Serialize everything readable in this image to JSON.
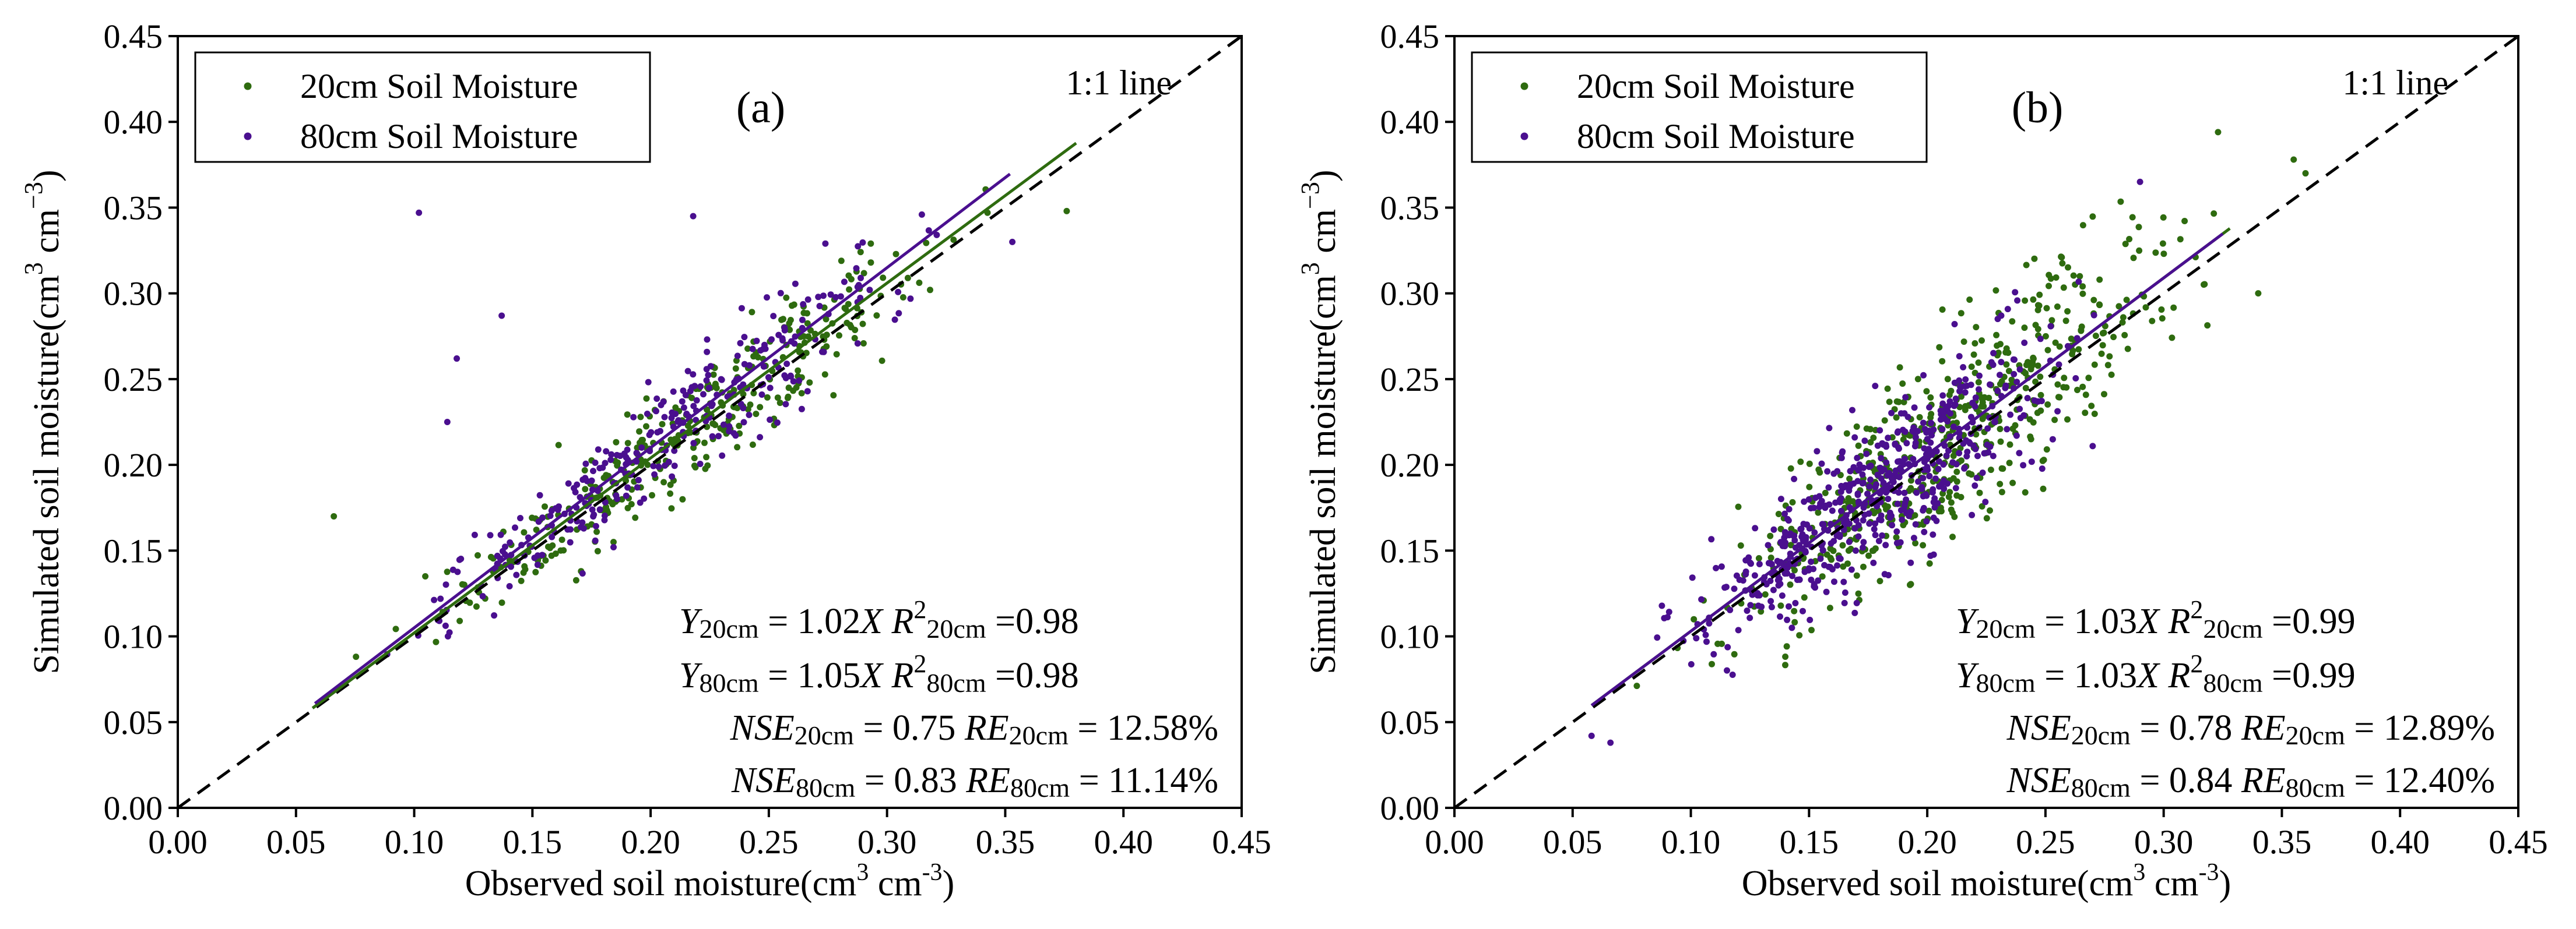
{
  "chart_data": [
    {
      "type": "scatter",
      "panel_label": "(a)",
      "xlabel": "Observed soil moisture(cm3 cm-3)",
      "xlabel_parts": {
        "main": "Observed soil moisture(cm",
        "unit_exp1": "3",
        "mid": " cm",
        "unit_exp2": "-3",
        "end": ")"
      },
      "ylabel": "Simulated soil moisture(cm3 cm-3)",
      "ylabel_parts": {
        "main": "Simulated soil moisture(cm",
        "unit_exp1": "3",
        "mid": " cm",
        "unit_exp2": "−3",
        "end": ")"
      },
      "xlim": [
        0,
        0.45
      ],
      "ylim": [
        0,
        0.45
      ],
      "xticks": [
        "0.00",
        "0.05",
        "0.10",
        "0.15",
        "0.20",
        "0.25",
        "0.30",
        "0.35",
        "0.40",
        "0.45"
      ],
      "yticks": [
        "0.00",
        "0.05",
        "0.10",
        "0.15",
        "0.20",
        "0.25",
        "0.30",
        "0.35",
        "0.40",
        "0.45"
      ],
      "one_to_one_label": "1:1 line",
      "legend": [
        {
          "label": "20cm Soil Moisture",
          "color": "#2e6b0f"
        },
        {
          "label": "80cm Soil Moisture",
          "color": "#4a0f8f"
        }
      ],
      "series": [
        {
          "name": "20cm Soil Moisture",
          "color": "#2e6b0f",
          "n_points": 340,
          "x_range": [
            0.055,
            0.38
          ],
          "slope": 1.02,
          "spread": 0.016,
          "fit_x_range": [
            0.057,
            0.38
          ],
          "seed": 11
        },
        {
          "name": "80cm Soil Moisture",
          "color": "#4a0f8f",
          "n_points": 300,
          "x_range": [
            0.058,
            0.355
          ],
          "slope": 1.05,
          "spread": 0.015,
          "fit_x_range": [
            0.058,
            0.352
          ],
          "seed": 23
        }
      ],
      "outliers": [
        {
          "series": 1,
          "x": 0.102,
          "y": 0.347
        },
        {
          "series": 1,
          "x": 0.218,
          "y": 0.345
        },
        {
          "series": 1,
          "x": 0.137,
          "y": 0.287
        },
        {
          "series": 1,
          "x": 0.118,
          "y": 0.262
        },
        {
          "series": 1,
          "x": 0.114,
          "y": 0.225
        },
        {
          "series": 0,
          "x": 0.066,
          "y": 0.17
        },
        {
          "series": 0,
          "x": 0.376,
          "y": 0.348
        },
        {
          "series": 1,
          "x": 0.353,
          "y": 0.33
        }
      ],
      "annotations": {
        "eq1": {
          "y": "Y",
          "sub": "20cm",
          "eq": " = 1.02",
          "x": "X",
          "r": "R",
          "sup": "2",
          "rsub": "20cm",
          "val": " =0.98"
        },
        "eq2": {
          "y": "Y",
          "sub": "80cm",
          "eq": " = 1.05",
          "x": "X",
          "r": "R",
          "sup": "2",
          "rsub": "80cm",
          "val": " =0.98"
        },
        "nse1": {
          "nse": "NSE",
          "sub": "20cm",
          "val": " = 0.75   ",
          "re": "RE",
          "resub": "20cm",
          "reval": " = 12.58%"
        },
        "nse2": {
          "nse": "NSE",
          "sub": "80cm",
          "val": " = 0.83   ",
          "re": "RE",
          "resub": "80cm",
          "reval": " = 11.14%"
        }
      }
    },
    {
      "type": "scatter",
      "panel_label": "(b)",
      "xlabel": "Observed soil moisture(cm3 cm-3)",
      "xlabel_parts": {
        "main": "Observed soil moisture(cm",
        "unit_exp1": "3",
        "mid": " cm",
        "unit_exp2": "-3",
        "end": ")"
      },
      "ylabel": "Simulated soil moisture(cm3 cm-3)",
      "ylabel_parts": {
        "main": "Simulated soil moisture(cm",
        "unit_exp1": "3",
        "mid": " cm",
        "unit_exp2": "−3",
        "end": ")"
      },
      "xlim": [
        0,
        0.45
      ],
      "ylim": [
        0,
        0.45
      ],
      "xticks": [
        "0.00",
        "0.05",
        "0.10",
        "0.15",
        "0.20",
        "0.25",
        "0.30",
        "0.35",
        "0.40",
        "0.45"
      ],
      "yticks": [
        "0.00",
        "0.05",
        "0.10",
        "0.15",
        "0.20",
        "0.25",
        "0.30",
        "0.35",
        "0.40",
        "0.45"
      ],
      "one_to_one_label": "1:1 line",
      "legend": [
        {
          "label": "20cm Soil Moisture",
          "color": "#2e6b0f"
        },
        {
          "label": "80cm Soil Moisture",
          "color": "#4a0f8f"
        }
      ],
      "series": [
        {
          "name": "20cm Soil Moisture",
          "color": "#2e6b0f",
          "n_points": 560,
          "x_range": [
            0.06,
            0.36
          ],
          "slope": 1.03,
          "spread": 0.026,
          "fit_x_range": [
            0.058,
            0.328
          ],
          "seed": 37
        },
        {
          "name": "80cm Soil Moisture",
          "color": "#4a0f8f",
          "n_points": 560,
          "x_range": [
            0.06,
            0.3
          ],
          "slope": 1.03,
          "spread": 0.022,
          "fit_x_range": [
            0.058,
            0.325
          ],
          "seed": 53
        }
      ],
      "outliers": [
        {
          "series": 0,
          "x": 0.323,
          "y": 0.394
        },
        {
          "series": 0,
          "x": 0.355,
          "y": 0.378
        },
        {
          "series": 0,
          "x": 0.36,
          "y": 0.37
        },
        {
          "series": 1,
          "x": 0.058,
          "y": 0.042
        },
        {
          "series": 1,
          "x": 0.066,
          "y": 0.038
        },
        {
          "series": 0,
          "x": 0.34,
          "y": 0.3
        },
        {
          "series": 1,
          "x": 0.29,
          "y": 0.365
        }
      ],
      "annotations": {
        "eq1": {
          "y": "Y",
          "sub": "20cm",
          "eq": " = 1.03",
          "x": "X",
          "r": "R",
          "sup": "2",
          "rsub": "20cm",
          "val": " =0.99"
        },
        "eq2": {
          "y": "Y",
          "sub": "80cm",
          "eq": " = 1.03",
          "x": "X",
          "r": "R",
          "sup": "2",
          "rsub": "80cm",
          "val": " =0.99"
        },
        "nse1": {
          "nse": "NSE",
          "sub": "20cm",
          "val": " = 0.78   ",
          "re": "RE",
          "resub": "20cm",
          "reval": " = 12.89%"
        },
        "nse2": {
          "nse": "NSE",
          "sub": "80cm",
          "val": " = 0.84   ",
          "re": "RE",
          "resub": "80cm",
          "reval": " = 12.40%"
        }
      }
    }
  ]
}
